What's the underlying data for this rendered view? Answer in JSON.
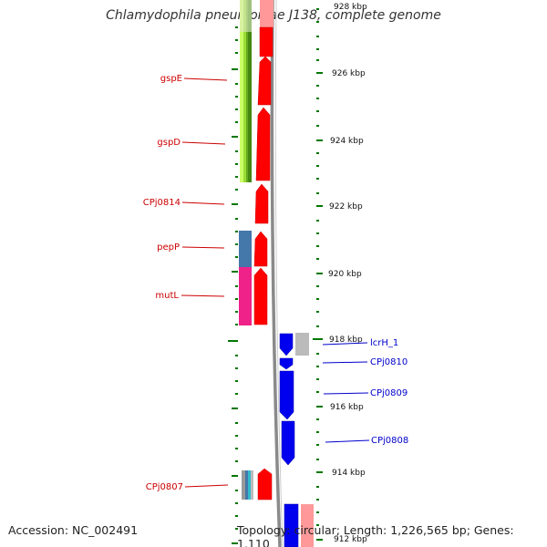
{
  "title": "Chlamydophila pneumoniae J138, complete genome",
  "accession": "Accession: NC_002491",
  "topology": "Topology: circular; Length: 1,226,565 bp; Genes: 1,110",
  "ticks": {
    "t928": "928 kbp",
    "t926": "926 kbp",
    "t924": "924 kbp",
    "t922": "922 kbp",
    "t920": "920 kbp",
    "t918": "918 kbp",
    "t916": "916 kbp",
    "t914": "914 kbp",
    "t912": "912 kbp"
  },
  "genes_left": {
    "gspE": "gspE",
    "gspD": "gspD",
    "cpj0814": "CPj0814",
    "pepP": "pepP",
    "mutL": "mutL",
    "cpj0807": "CPj0807"
  },
  "genes_right": {
    "lcrH": "lcrH_1",
    "cpj0810": "CPj0810",
    "cpj0809": "CPj0809",
    "cpj0808": "CPj0808"
  },
  "colors": {
    "forward_cds": "#ff0000",
    "reverse_cds": "#0000ee",
    "label_left": "#cc0000",
    "label_right": "#0000cc",
    "tick": "#007700",
    "backbone": "#888888"
  }
}
